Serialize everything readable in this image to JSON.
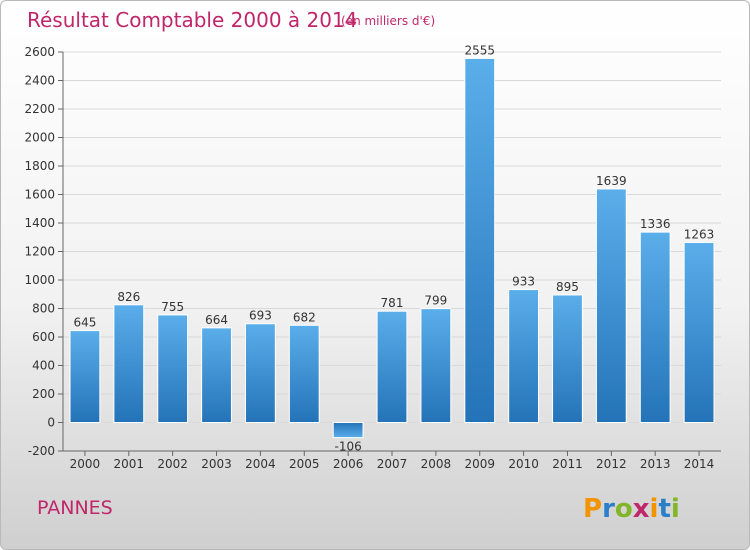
{
  "chart_data": {
    "type": "bar",
    "title": "Résultat Comptable 2000 à 2014",
    "subtitle": "(en milliers d'€)",
    "xlabel": "",
    "ylabel": "",
    "categories": [
      "2000",
      "2001",
      "2002",
      "2003",
      "2004",
      "2005",
      "2006",
      "2007",
      "2008",
      "2009",
      "2010",
      "2011",
      "2012",
      "2013",
      "2014"
    ],
    "values": [
      645,
      826,
      755,
      664,
      693,
      682,
      -106,
      781,
      799,
      2555,
      933,
      895,
      1639,
      1336,
      1263
    ],
    "data_labels": [
      "645",
      "826",
      "755",
      "664",
      "693",
      "682",
      "-106",
      "781",
      "799",
      "2555",
      "933",
      "895",
      "1639",
      "1336",
      "1263"
    ],
    "ylim": [
      -200,
      2600
    ],
    "yticks": [
      -200,
      0,
      200,
      400,
      600,
      800,
      1000,
      1200,
      1400,
      1600,
      1800,
      2000,
      2200,
      2400,
      2600
    ],
    "grid": true,
    "bar_color": "#3a8fd6"
  },
  "place_name": "PANNES",
  "logo": {
    "letters": [
      "P",
      "r",
      "o",
      "x",
      "i",
      "t",
      "i"
    ],
    "colors": [
      "#f29400",
      "#2a7fc9",
      "#82b527",
      "#c0266a",
      "#f29400",
      "#2a7fc9",
      "#82b527"
    ]
  },
  "colors": {
    "title": "#c0266a",
    "grid": "#d9d9d9"
  }
}
